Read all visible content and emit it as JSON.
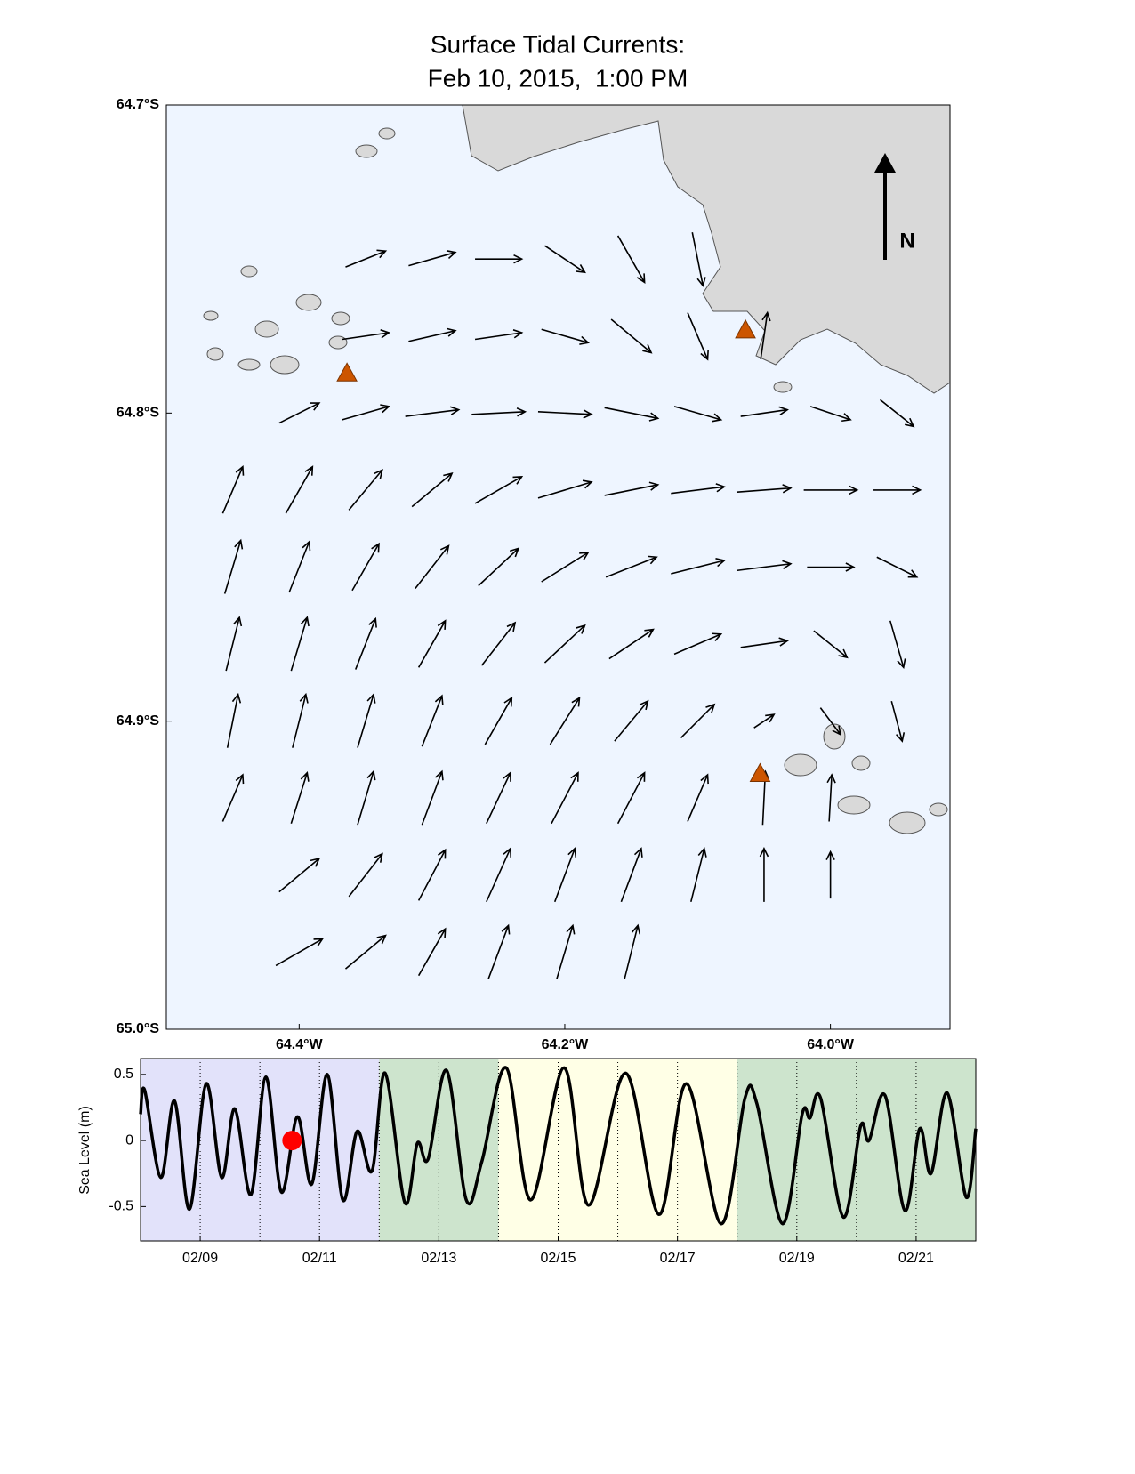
{
  "chart_data": [
    {
      "type": "quiver",
      "title": [
        "Surface Tidal Currents:",
        "Feb 10, 2015,  1:00 PM"
      ],
      "xlim": [
        -64.5,
        -63.91
      ],
      "ylim": [
        -65.0,
        -64.7
      ],
      "xticks": [
        {
          "value": -64.4,
          "label": "64.4°W"
        },
        {
          "value": -64.2,
          "label": "64.2°W"
        },
        {
          "value": -64.0,
          "label": "64.0°W"
        }
      ],
      "yticks": [
        {
          "value": -64.7,
          "label": "64.7°S"
        },
        {
          "value": -64.8,
          "label": "64.8°S"
        },
        {
          "value": -64.9,
          "label": "64.9°S"
        },
        {
          "value": -65.0,
          "label": "65.0°S"
        }
      ],
      "north_label": "N",
      "water_color": "#eef5ff",
      "vector_color": "#000000",
      "station_color": "#cc5500",
      "stations": [
        [
          -64.364,
          -64.787
        ],
        [
          -64.064,
          -64.773
        ],
        [
          -64.053,
          -64.917
        ]
      ],
      "vectors": [
        [
          -64.35,
          -64.75,
          0.3,
          0.12
        ],
        [
          -64.3,
          -64.75,
          0.35,
          0.1
        ],
        [
          -64.25,
          -64.75,
          0.35,
          0.0
        ],
        [
          -64.2,
          -64.75,
          0.3,
          -0.2
        ],
        [
          -64.15,
          -64.75,
          0.2,
          -0.35
        ],
        [
          -64.1,
          -64.75,
          0.08,
          -0.4
        ],
        [
          -64.35,
          -64.775,
          0.35,
          0.05
        ],
        [
          -64.3,
          -64.775,
          0.35,
          0.08
        ],
        [
          -64.25,
          -64.775,
          0.35,
          0.05
        ],
        [
          -64.2,
          -64.775,
          0.35,
          -0.1
        ],
        [
          -64.15,
          -64.775,
          0.3,
          -0.25
        ],
        [
          -64.1,
          -64.775,
          0.15,
          -0.35
        ],
        [
          -64.05,
          -64.775,
          0.05,
          0.35
        ],
        [
          -64.4,
          -64.8,
          0.3,
          0.15
        ],
        [
          -64.35,
          -64.8,
          0.35,
          0.1
        ],
        [
          -64.3,
          -64.8,
          0.4,
          0.05
        ],
        [
          -64.25,
          -64.8,
          0.4,
          0.02
        ],
        [
          -64.2,
          -64.8,
          0.4,
          -0.02
        ],
        [
          -64.15,
          -64.8,
          0.4,
          -0.08
        ],
        [
          -64.1,
          -64.8,
          0.35,
          -0.1
        ],
        [
          -64.05,
          -64.8,
          0.35,
          0.05
        ],
        [
          -64.0,
          -64.8,
          0.3,
          -0.1
        ],
        [
          -63.95,
          -64.8,
          0.25,
          -0.2
        ],
        [
          -64.45,
          -64.825,
          0.15,
          0.35
        ],
        [
          -64.4,
          -64.825,
          0.2,
          0.35
        ],
        [
          -64.35,
          -64.825,
          0.25,
          0.3
        ],
        [
          -64.3,
          -64.825,
          0.3,
          0.25
        ],
        [
          -64.25,
          -64.825,
          0.35,
          0.2
        ],
        [
          -64.2,
          -64.825,
          0.4,
          0.12
        ],
        [
          -64.15,
          -64.825,
          0.4,
          0.08
        ],
        [
          -64.1,
          -64.825,
          0.4,
          0.05
        ],
        [
          -64.05,
          -64.825,
          0.4,
          0.03
        ],
        [
          -64.0,
          -64.825,
          0.4,
          0.0
        ],
        [
          -63.95,
          -64.825,
          0.35,
          0.0
        ],
        [
          -64.45,
          -64.85,
          0.12,
          0.4
        ],
        [
          -64.4,
          -64.85,
          0.15,
          0.38
        ],
        [
          -64.35,
          -64.85,
          0.2,
          0.35
        ],
        [
          -64.3,
          -64.85,
          0.25,
          0.32
        ],
        [
          -64.25,
          -64.85,
          0.3,
          0.28
        ],
        [
          -64.2,
          -64.85,
          0.35,
          0.22
        ],
        [
          -64.15,
          -64.85,
          0.38,
          0.15
        ],
        [
          -64.1,
          -64.85,
          0.4,
          0.1
        ],
        [
          -64.05,
          -64.85,
          0.4,
          0.05
        ],
        [
          -64.0,
          -64.85,
          0.35,
          0.0
        ],
        [
          -63.95,
          -64.85,
          0.3,
          -0.15
        ],
        [
          -64.45,
          -64.875,
          0.1,
          0.4
        ],
        [
          -64.4,
          -64.875,
          0.12,
          0.4
        ],
        [
          -64.35,
          -64.875,
          0.15,
          0.38
        ],
        [
          -64.3,
          -64.875,
          0.2,
          0.35
        ],
        [
          -64.25,
          -64.875,
          0.25,
          0.32
        ],
        [
          -64.2,
          -64.875,
          0.3,
          0.28
        ],
        [
          -64.15,
          -64.875,
          0.33,
          0.22
        ],
        [
          -64.1,
          -64.875,
          0.35,
          0.15
        ],
        [
          -64.05,
          -64.875,
          0.35,
          0.05
        ],
        [
          -64.0,
          -64.875,
          0.25,
          -0.2
        ],
        [
          -63.95,
          -64.875,
          0.1,
          -0.35
        ],
        [
          -64.45,
          -64.9,
          0.08,
          0.4
        ],
        [
          -64.4,
          -64.9,
          0.1,
          0.4
        ],
        [
          -64.35,
          -64.9,
          0.12,
          0.4
        ],
        [
          -64.3,
          -64.9,
          0.15,
          0.38
        ],
        [
          -64.25,
          -64.9,
          0.2,
          0.35
        ],
        [
          -64.2,
          -64.9,
          0.22,
          0.35
        ],
        [
          -64.15,
          -64.9,
          0.25,
          0.3
        ],
        [
          -64.1,
          -64.9,
          0.25,
          0.25
        ],
        [
          -64.05,
          -64.9,
          0.15,
          0.1
        ],
        [
          -64.0,
          -64.9,
          0.15,
          -0.2
        ],
        [
          -63.95,
          -64.9,
          0.08,
          -0.3
        ],
        [
          -64.45,
          -64.925,
          0.15,
          0.35
        ],
        [
          -64.4,
          -64.925,
          0.12,
          0.38
        ],
        [
          -64.35,
          -64.925,
          0.12,
          0.4
        ],
        [
          -64.3,
          -64.925,
          0.15,
          0.4
        ],
        [
          -64.25,
          -64.925,
          0.18,
          0.38
        ],
        [
          -64.2,
          -64.925,
          0.2,
          0.38
        ],
        [
          -64.15,
          -64.925,
          0.2,
          0.38
        ],
        [
          -64.1,
          -64.925,
          0.15,
          0.35
        ],
        [
          -64.05,
          -64.925,
          0.02,
          0.4
        ],
        [
          -64.0,
          -64.925,
          0.02,
          0.35
        ],
        [
          -64.4,
          -64.95,
          0.3,
          0.25
        ],
        [
          -64.35,
          -64.95,
          0.25,
          0.32
        ],
        [
          -64.3,
          -64.95,
          0.2,
          0.38
        ],
        [
          -64.25,
          -64.95,
          0.18,
          0.4
        ],
        [
          -64.2,
          -64.95,
          0.15,
          0.4
        ],
        [
          -64.15,
          -64.95,
          0.15,
          0.4
        ],
        [
          -64.1,
          -64.95,
          0.1,
          0.4
        ],
        [
          -64.05,
          -64.95,
          0.0,
          0.4
        ],
        [
          -64.0,
          -64.95,
          0.0,
          0.35
        ],
        [
          -64.4,
          -64.975,
          0.35,
          0.2
        ],
        [
          -64.35,
          -64.975,
          0.3,
          0.25
        ],
        [
          -64.3,
          -64.975,
          0.2,
          0.35
        ],
        [
          -64.25,
          -64.975,
          0.15,
          0.4
        ],
        [
          -64.2,
          -64.975,
          0.12,
          0.4
        ],
        [
          -64.15,
          -64.975,
          0.1,
          0.4
        ]
      ]
    },
    {
      "type": "line",
      "ylabel": "Sea Level (m)",
      "x": [
        8.0,
        8.07,
        8.34,
        8.57,
        8.82,
        9.1,
        9.36,
        9.58,
        9.85,
        10.1,
        10.36,
        10.63,
        10.87,
        11.13,
        11.39,
        11.63,
        11.88,
        12.1,
        12.43,
        12.64,
        12.82,
        13.13,
        13.46,
        13.72,
        14.13,
        14.54,
        15.1,
        15.51,
        16.13,
        16.69,
        17.15,
        17.73,
        18.13,
        18.33,
        18.76,
        19.09,
        19.22,
        19.4,
        19.78,
        20.07,
        20.21,
        20.48,
        20.81,
        21.06,
        21.25,
        21.52,
        21.84,
        22.0
      ],
      "series": [
        {
          "color": "#000000",
          "values": [
            0.2,
            0.38,
            -0.28,
            0.3,
            -0.52,
            0.43,
            -0.28,
            0.24,
            -0.41,
            0.48,
            -0.39,
            0.18,
            -0.33,
            0.5,
            -0.45,
            0.07,
            -0.23,
            0.51,
            -0.47,
            -0.02,
            -0.14,
            0.53,
            -0.45,
            -0.16,
            0.55,
            -0.45,
            0.55,
            -0.49,
            0.51,
            -0.56,
            0.43,
            -0.63,
            0.32,
            0.28,
            -0.63,
            0.2,
            0.17,
            0.32,
            -0.58,
            0.11,
            0.0,
            0.34,
            -0.53,
            0.09,
            -0.25,
            0.36,
            -0.43,
            0.09
          ]
        }
      ],
      "xlim": [
        8,
        22
      ],
      "ylim": [
        -0.76,
        0.62
      ],
      "xticks": [
        {
          "value": 9,
          "label": "02/09"
        },
        {
          "value": 11,
          "label": "02/11"
        },
        {
          "value": 13,
          "label": "02/13"
        },
        {
          "value": 15,
          "label": "02/15"
        },
        {
          "value": 17,
          "label": "02/17"
        },
        {
          "value": 19,
          "label": "02/19"
        },
        {
          "value": 21,
          "label": "02/21"
        }
      ],
      "yticks": [
        -0.5,
        0,
        0.5
      ],
      "day_lines": [
        9,
        10,
        11,
        12,
        13,
        14,
        15,
        16,
        17,
        18,
        19,
        20,
        21
      ],
      "bands": [
        {
          "from": 8,
          "to": 12,
          "color": "#e2e2fa"
        },
        {
          "from": 12,
          "to": 14,
          "color": "#cde4cd"
        },
        {
          "from": 14,
          "to": 18,
          "color": "#ffffe6"
        },
        {
          "from": 18,
          "to": 22,
          "color": "#cde4cd"
        }
      ],
      "marker": {
        "x": 10.54,
        "y": 0,
        "color": "#ff0000"
      }
    }
  ]
}
